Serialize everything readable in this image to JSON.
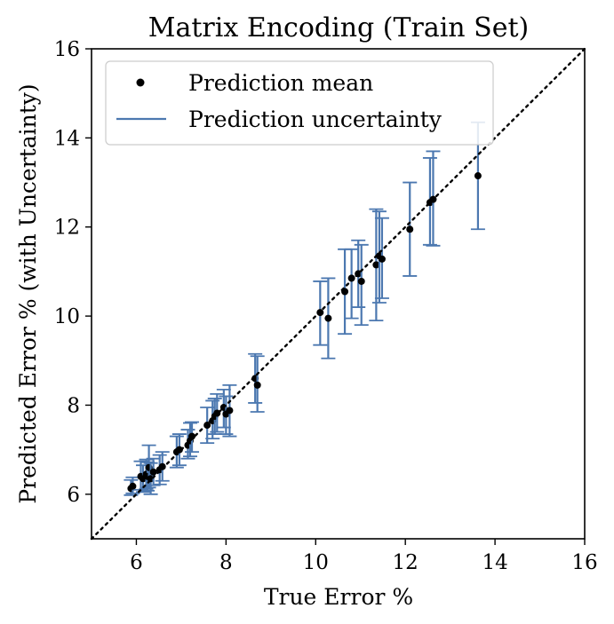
{
  "chart_data": {
    "type": "scatter",
    "title": "Matrix Encoding (Train Set)",
    "xlabel": "True Error %",
    "ylabel": "Predicted Error % (with Uncertainty)",
    "xlim": [
      5,
      16
    ],
    "ylim": [
      5,
      16
    ],
    "xticks": [
      "6",
      "8",
      "10",
      "12",
      "14",
      "16"
    ],
    "yticks": [
      "6",
      "8",
      "10",
      "12",
      "14",
      "16"
    ],
    "grid": false,
    "legend_position": "top-left",
    "legend": [
      {
        "label": "Prediction mean",
        "kind": "marker"
      },
      {
        "label": "Prediction uncertainty",
        "kind": "line"
      }
    ],
    "reference_line": {
      "style": "dotted",
      "from": [
        5,
        5
      ],
      "to": [
        16,
        16
      ]
    },
    "colors": {
      "mean": "#000000",
      "uncertainty": "#4c78b0",
      "reference": "#000000"
    },
    "points": [
      {
        "x": 5.88,
        "y": 6.13,
        "lo": 5.98,
        "hi": 6.32
      },
      {
        "x": 5.92,
        "y": 6.18,
        "lo": 6.02,
        "hi": 6.38
      },
      {
        "x": 6.1,
        "y": 6.4,
        "lo": 6.1,
        "hi": 6.74
      },
      {
        "x": 6.15,
        "y": 6.35,
        "lo": 6.05,
        "hi": 6.65
      },
      {
        "x": 6.22,
        "y": 6.45,
        "lo": 6.12,
        "hi": 6.78
      },
      {
        "x": 6.25,
        "y": 6.4,
        "lo": 6.08,
        "hi": 6.72
      },
      {
        "x": 6.28,
        "y": 6.6,
        "lo": 6.15,
        "hi": 7.1
      },
      {
        "x": 6.32,
        "y": 6.35,
        "lo": 6.0,
        "hi": 6.7
      },
      {
        "x": 6.38,
        "y": 6.5,
        "lo": 6.2,
        "hi": 6.8
      },
      {
        "x": 6.52,
        "y": 6.55,
        "lo": 6.22,
        "hi": 6.88
      },
      {
        "x": 6.58,
        "y": 6.62,
        "lo": 6.3,
        "hi": 6.95
      },
      {
        "x": 6.9,
        "y": 6.95,
        "lo": 6.6,
        "hi": 7.3
      },
      {
        "x": 6.96,
        "y": 7.0,
        "lo": 6.65,
        "hi": 7.35
      },
      {
        "x": 7.15,
        "y": 7.1,
        "lo": 6.8,
        "hi": 7.45
      },
      {
        "x": 7.2,
        "y": 7.2,
        "lo": 6.85,
        "hi": 7.6
      },
      {
        "x": 7.24,
        "y": 7.3,
        "lo": 6.95,
        "hi": 7.62
      },
      {
        "x": 7.58,
        "y": 7.55,
        "lo": 7.15,
        "hi": 7.95
      },
      {
        "x": 7.7,
        "y": 7.65,
        "lo": 7.25,
        "hi": 8.1
      },
      {
        "x": 7.75,
        "y": 7.75,
        "lo": 7.35,
        "hi": 8.15
      },
      {
        "x": 7.8,
        "y": 7.82,
        "lo": 7.4,
        "hi": 8.25
      },
      {
        "x": 7.95,
        "y": 7.95,
        "lo": 7.5,
        "hi": 8.35
      },
      {
        "x": 8.0,
        "y": 7.8,
        "lo": 7.35,
        "hi": 8.2
      },
      {
        "x": 8.08,
        "y": 7.88,
        "lo": 7.3,
        "hi": 8.45
      },
      {
        "x": 8.65,
        "y": 8.6,
        "lo": 8.05,
        "hi": 9.15
      },
      {
        "x": 8.7,
        "y": 8.45,
        "lo": 7.85,
        "hi": 9.1
      },
      {
        "x": 10.1,
        "y": 10.08,
        "lo": 9.35,
        "hi": 10.78
      },
      {
        "x": 10.28,
        "y": 9.95,
        "lo": 9.05,
        "hi": 10.85
      },
      {
        "x": 10.65,
        "y": 10.55,
        "lo": 9.6,
        "hi": 11.5
      },
      {
        "x": 10.8,
        "y": 10.85,
        "lo": 9.95,
        "hi": 11.5
      },
      {
        "x": 10.95,
        "y": 10.95,
        "lo": 10.2,
        "hi": 11.7
      },
      {
        "x": 11.02,
        "y": 10.78,
        "lo": 9.8,
        "hi": 11.6
      },
      {
        "x": 11.35,
        "y": 11.15,
        "lo": 9.9,
        "hi": 12.4
      },
      {
        "x": 11.42,
        "y": 11.35,
        "lo": 10.3,
        "hi": 12.35
      },
      {
        "x": 11.48,
        "y": 11.28,
        "lo": 10.4,
        "hi": 12.2
      },
      {
        "x": 12.1,
        "y": 11.95,
        "lo": 10.9,
        "hi": 13.0
      },
      {
        "x": 12.55,
        "y": 12.55,
        "lo": 11.6,
        "hi": 13.55
      },
      {
        "x": 12.62,
        "y": 12.62,
        "lo": 11.58,
        "hi": 13.7
      },
      {
        "x": 13.62,
        "y": 13.15,
        "lo": 11.95,
        "hi": 14.35
      }
    ]
  }
}
